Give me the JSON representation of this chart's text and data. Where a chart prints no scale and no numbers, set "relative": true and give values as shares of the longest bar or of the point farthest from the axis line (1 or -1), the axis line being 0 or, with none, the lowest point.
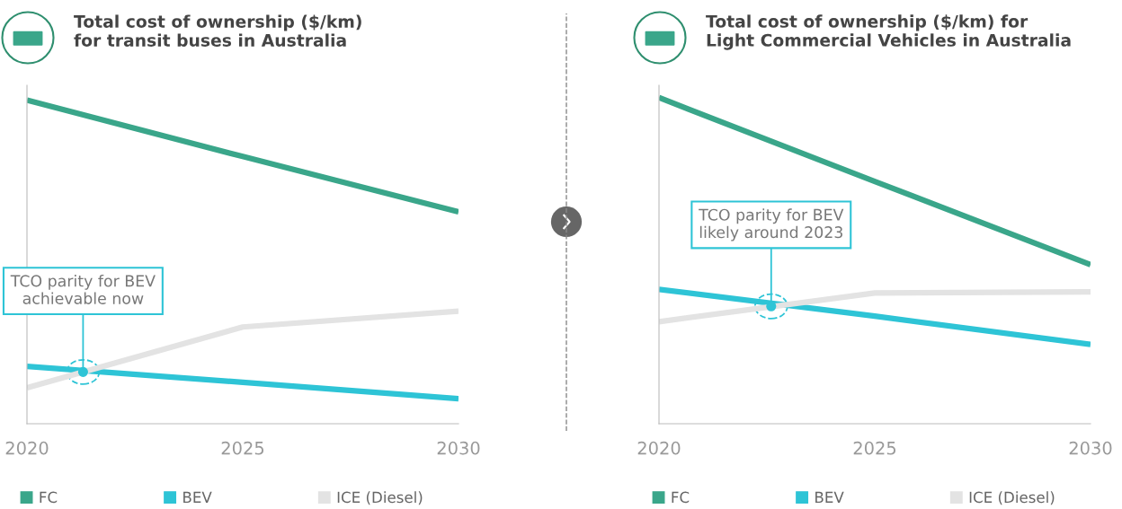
{
  "chart_data": [
    {
      "type": "line",
      "title": "Total cost of ownership ($/km)\nfor transit buses in Australia",
      "relative": true,
      "x": [
        2020,
        2025,
        2030
      ],
      "xlim": [
        2020,
        2030
      ],
      "xticks": [
        2020,
        2025,
        2030
      ],
      "tick_labels": "x",
      "legend": "bottom",
      "grid": false,
      "marker": "none",
      "line_style": "solid",
      "series": [
        {
          "name": "FC",
          "color": "#3aa68a",
          "values": [
            1,
            0.826,
            0.655
          ]
        },
        {
          "name": "BEV",
          "color": "#2ec4d6",
          "values": [
            0.177,
            0.128,
            0.077
          ]
        },
        {
          "name": "ICE (Diesel)",
          "color": "#e3e3e3",
          "values": [
            0.111,
            0.299,
            0.348
          ]
        }
      ],
      "annotations": [
        {
          "text": "TCO parity for BEV\nachievable now",
          "x": 2021.3,
          "y": 0.16
        }
      ]
    },
    {
      "type": "line",
      "title": "Total cost of ownership ($/km) for\nLight Commercial Vehicles in Australia",
      "relative": true,
      "x": [
        2020,
        2025,
        2030
      ],
      "xlim": [
        2020,
        2030
      ],
      "xticks": [
        2020,
        2025,
        2030
      ],
      "tick_labels": "x",
      "legend": "bottom",
      "grid": false,
      "marker": "none",
      "line_style": "solid",
      "series": [
        {
          "name": "FC",
          "color": "#3aa68a",
          "values": [
            1,
            0.743,
            0.488
          ]
        },
        {
          "name": "BEV",
          "color": "#2ec4d6",
          "values": [
            0.412,
            0.33,
            0.243
          ]
        },
        {
          "name": "ICE (Diesel)",
          "color": "#e3e3e3",
          "values": [
            0.313,
            0.401,
            0.404
          ]
        }
      ],
      "annotations": [
        {
          "text": "TCO parity for BEV\nlikely around 2023",
          "x": 2022.6,
          "y": 0.36
        }
      ]
    }
  ]
}
